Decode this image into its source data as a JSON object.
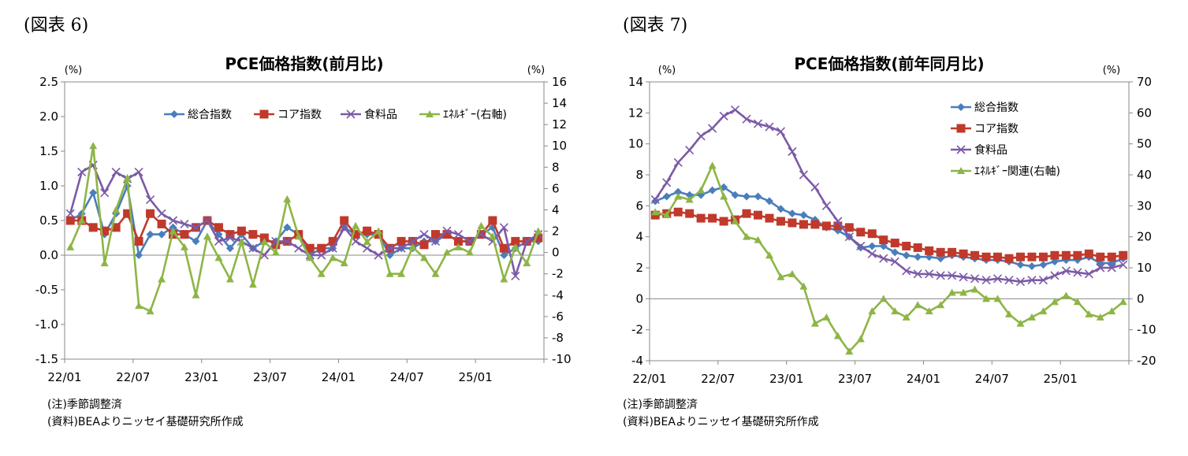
{
  "figures": [
    {
      "id": "fig6",
      "label": "(図表 6)",
      "note1": "(注)季節調整済",
      "note2": "(資料)BEAよりニッセイ基礎研究所作成"
    },
    {
      "id": "fig7",
      "label": "(図表 7)",
      "note1": "(注)季節調整済",
      "note2": "(資料)BEAよりニッセイ基礎研究所作成"
    }
  ],
  "colors": {
    "headline": "#4a7ebb",
    "core": "#c0392b",
    "food": "#7b5aa6",
    "energy": "#8db546"
  },
  "chart_data": [
    {
      "type": "line",
      "title": "PCE価格指数(前月比)",
      "ylabel_left": "(%)",
      "ylabel_right": "(%)",
      "ylim_left": [
        -1.5,
        2.5
      ],
      "yticks_left": [
        "-1.5",
        "-1.0",
        "-0.5",
        "0.0",
        "0.5",
        "1.0",
        "1.5",
        "2.0",
        "2.5"
      ],
      "ylim_right": [
        -10,
        16
      ],
      "yticks_right": [
        "-10",
        "-8",
        "-6",
        "-4",
        "-2",
        "0",
        "2",
        "4",
        "6",
        "8",
        "10",
        "12",
        "14",
        "16"
      ],
      "x_tick_labels": [
        "22/01",
        "22/07",
        "23/01",
        "23/07",
        "24/01",
        "24/07",
        "25/01"
      ],
      "n_points": 42,
      "legend_position": "top-right",
      "legend_layout": "row",
      "series": [
        {
          "name": "総合指数",
          "axis": "left",
          "marker": "diamond",
          "color_key": "headline",
          "values": [
            0.5,
            0.6,
            0.9,
            0.3,
            0.6,
            1.0,
            0.0,
            0.3,
            0.3,
            0.4,
            0.3,
            0.2,
            0.5,
            0.3,
            0.1,
            0.3,
            0.1,
            0.2,
            0.2,
            0.4,
            0.3,
            0.0,
            0.1,
            0.1,
            0.4,
            0.3,
            0.3,
            0.3,
            0.0,
            0.1,
            0.1,
            0.2,
            0.2,
            0.3,
            0.2,
            0.2,
            0.3,
            0.4,
            0.0,
            0.1,
            0.2,
            0.2
          ]
        },
        {
          "name": "コア指数",
          "axis": "left",
          "marker": "square",
          "color_key": "core",
          "values": [
            0.5,
            0.5,
            0.4,
            0.35,
            0.4,
            0.6,
            0.2,
            0.6,
            0.45,
            0.3,
            0.3,
            0.4,
            0.5,
            0.4,
            0.3,
            0.35,
            0.3,
            0.25,
            0.15,
            0.2,
            0.3,
            0.1,
            0.1,
            0.2,
            0.5,
            0.3,
            0.35,
            0.3,
            0.1,
            0.2,
            0.2,
            0.15,
            0.3,
            0.3,
            0.2,
            0.2,
            0.3,
            0.5,
            0.1,
            0.2,
            0.2,
            0.25
          ]
        },
        {
          "name": "食料品",
          "axis": "left",
          "marker": "x",
          "color_key": "food",
          "values": [
            0.6,
            1.2,
            1.3,
            0.9,
            1.2,
            1.1,
            1.2,
            0.8,
            0.6,
            0.5,
            0.45,
            0.4,
            0.5,
            0.2,
            0.25,
            0.2,
            0.1,
            0.0,
            0.2,
            0.2,
            0.1,
            0.0,
            0.0,
            0.1,
            0.4,
            0.2,
            0.1,
            0.0,
            0.1,
            0.1,
            0.2,
            0.3,
            0.2,
            0.35,
            0.3,
            0.2,
            0.3,
            0.2,
            0.4,
            -0.3,
            0.2,
            0.3
          ]
        },
        {
          "name": "ｴﾈﾙｷﾞｰ(右軸)",
          "axis": "right",
          "marker": "triangle",
          "color_key": "energy",
          "values": [
            0.5,
            3.0,
            10.0,
            -1.0,
            4.0,
            7.0,
            -5.0,
            -5.5,
            -2.5,
            2.0,
            0.5,
            -4.0,
            1.5,
            -0.5,
            -2.5,
            1.0,
            -3.0,
            1.0,
            0.0,
            5.0,
            1.5,
            -0.5,
            -2.0,
            -0.5,
            -1.0,
            2.5,
            1.0,
            2.0,
            -2.0,
            -2.0,
            0.5,
            -0.5,
            -2.0,
            0.0,
            0.5,
            0.0,
            2.5,
            1.5,
            -2.5,
            0.5,
            -1.0,
            2.0
          ]
        }
      ]
    },
    {
      "type": "line",
      "title": "PCE価格指数(前年同月比)",
      "ylabel_left": "(%)",
      "ylabel_right": "(%)",
      "ylim_left": [
        -4,
        14
      ],
      "yticks_left": [
        "-4",
        "-2",
        "0",
        "2",
        "4",
        "6",
        "8",
        "10",
        "12",
        "14"
      ],
      "ylim_right": [
        -20,
        70
      ],
      "yticks_right": [
        "-20",
        "-10",
        "0",
        "10",
        "20",
        "30",
        "40",
        "50",
        "60",
        "70"
      ],
      "x_tick_labels": [
        "22/01",
        "22/07",
        "23/01",
        "23/07",
        "24/01",
        "24/07",
        "25/01"
      ],
      "n_points": 42,
      "legend_position": "top-right",
      "legend_layout": "column",
      "series": [
        {
          "name": "総合指数",
          "axis": "left",
          "marker": "diamond",
          "color_key": "headline",
          "values": [
            6.3,
            6.6,
            6.9,
            6.7,
            6.7,
            7.0,
            7.2,
            6.7,
            6.6,
            6.6,
            6.3,
            5.8,
            5.5,
            5.4,
            5.1,
            4.6,
            4.4,
            4.0,
            3.3,
            3.4,
            3.4,
            3.0,
            2.8,
            2.7,
            2.7,
            2.6,
            2.8,
            2.7,
            2.6,
            2.5,
            2.5,
            2.4,
            2.2,
            2.1,
            2.2,
            2.4,
            2.5,
            2.5,
            2.7,
            2.3,
            2.3,
            2.6
          ]
        },
        {
          "name": "コア指数",
          "axis": "left",
          "marker": "square",
          "color_key": "core",
          "values": [
            5.4,
            5.5,
            5.6,
            5.5,
            5.2,
            5.2,
            5.0,
            5.1,
            5.5,
            5.4,
            5.2,
            5.0,
            4.9,
            4.8,
            4.8,
            4.7,
            4.7,
            4.6,
            4.3,
            4.2,
            3.8,
            3.6,
            3.4,
            3.3,
            3.1,
            3.0,
            3.0,
            2.9,
            2.8,
            2.7,
            2.7,
            2.6,
            2.7,
            2.7,
            2.7,
            2.8,
            2.8,
            2.8,
            2.9,
            2.7,
            2.7,
            2.8
          ]
        },
        {
          "name": "食料品",
          "axis": "left",
          "marker": "x",
          "color_key": "food",
          "values": [
            6.4,
            7.5,
            8.8,
            9.6,
            10.5,
            11.0,
            11.8,
            12.2,
            11.6,
            11.3,
            11.1,
            10.8,
            9.5,
            8.0,
            7.2,
            6.0,
            5.0,
            4.0,
            3.4,
            2.9,
            2.6,
            2.4,
            1.8,
            1.6,
            1.6,
            1.5,
            1.5,
            1.4,
            1.3,
            1.2,
            1.3,
            1.2,
            1.1,
            1.2,
            1.2,
            1.5,
            1.8,
            1.7,
            1.6,
            2.0,
            2.0,
            2.2
          ]
        },
        {
          "name": "ｴﾈﾙｷﾞｰ関連(右軸)",
          "axis": "right",
          "marker": "triangle",
          "color_key": "energy",
          "values": [
            28,
            27,
            33,
            32,
            35,
            43,
            33,
            25,
            20,
            19,
            14,
            7,
            8,
            4,
            -8,
            -6,
            -12,
            -17,
            -13,
            -4,
            0,
            -4,
            -6,
            -2,
            -4,
            -2,
            2,
            2,
            3,
            0,
            0,
            -5,
            -8,
            -6,
            -4,
            -1,
            1,
            -1,
            -5,
            -6,
            -4,
            -1
          ]
        }
      ]
    }
  ]
}
